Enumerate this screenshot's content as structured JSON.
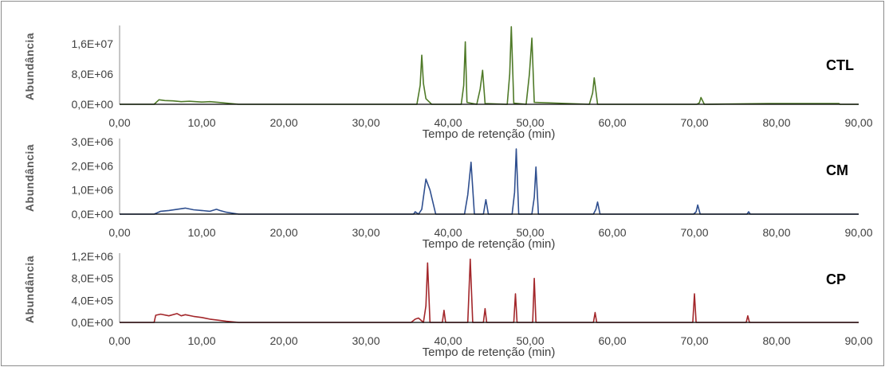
{
  "chart_data": [
    {
      "type": "line",
      "label": "CTL",
      "ylabel": "Abundância",
      "xlabel": "Tempo de retenção (min)",
      "xlim": [
        0,
        90
      ],
      "ylim": [
        0,
        20000000
      ],
      "x_ticks": [
        "0,00",
        "10,00",
        "20,00",
        "30,00",
        "40,00",
        "50,00",
        "60,00",
        "70,00",
        "80,00",
        "90,00"
      ],
      "y_ticks": [
        {
          "value": 0,
          "label": "0,0E+00"
        },
        {
          "value": 8000000,
          "label": "8,0E+06"
        },
        {
          "value": 16000000,
          "label": "1,6E+07"
        }
      ],
      "color": "#4f7a28",
      "series": [
        {
          "x": [
            0,
            4.2,
            4.8,
            5.5,
            6.5,
            7.5,
            8.5,
            10,
            11,
            12,
            13,
            14.5,
            20,
            30,
            36.2,
            36.6,
            36.8,
            37,
            37.3,
            38,
            41.6,
            41.9,
            42.1,
            42.3,
            43.5,
            43.9,
            44.2,
            44.5,
            47.2,
            47.5,
            47.7,
            48,
            49.5,
            49.9,
            50.2,
            50.5,
            57.2,
            57.6,
            57.8,
            58.2,
            70.3,
            70.6,
            70.8,
            71.2,
            79,
            84,
            87.6,
            87.7,
            90
          ],
          "y": [
            0,
            0,
            1200000,
            1000000,
            900000,
            700000,
            800000,
            600000,
            700000,
            500000,
            300000,
            0,
            0,
            0,
            0,
            5000000,
            13000000,
            5500000,
            1500000,
            0,
            0,
            5000000,
            16500000,
            500000,
            0,
            4000000,
            9000000,
            200000,
            0,
            8000000,
            20500000,
            300000,
            0,
            8000000,
            17500000,
            500000,
            0,
            3000000,
            7000000,
            0,
            0,
            400000,
            1800000,
            0,
            200000,
            200000,
            200000,
            0,
            0
          ]
        }
      ]
    },
    {
      "type": "line",
      "label": "CM",
      "ylabel": "Abundância",
      "xlabel": "Tempo de retenção (min)",
      "xlim": [
        0,
        90
      ],
      "ylim": [
        0,
        3000000
      ],
      "x_ticks": [
        "0,00",
        "10,00",
        "20,00",
        "30,00",
        "40,00",
        "50,00",
        "60,00",
        "70,00",
        "80,00",
        "90,00"
      ],
      "y_ticks": [
        {
          "value": 0,
          "label": "0,0E+00"
        },
        {
          "value": 1000000,
          "label": "1,0E+06"
        },
        {
          "value": 2000000,
          "label": "2,0E+06"
        },
        {
          "value": 3000000,
          "label": "3,0E+06"
        }
      ],
      "color": "#2f4f8f",
      "series": [
        {
          "x": [
            0,
            4.2,
            5,
            6,
            7,
            8,
            9,
            10,
            11,
            11.8,
            12.2,
            13,
            14.5,
            20,
            30,
            35.8,
            36,
            36.4,
            36.8,
            37.3,
            37.8,
            38.5,
            42,
            42.4,
            42.8,
            43.2,
            44.3,
            44.6,
            44.9,
            47.8,
            48.1,
            48.3,
            48.6,
            50.2,
            50.5,
            50.7,
            51,
            57.7,
            58,
            58.2,
            58.5,
            69.9,
            70.2,
            70.4,
            70.7,
            76.4,
            76.6,
            76.8,
            87.6,
            87.7,
            90
          ],
          "y": [
            0,
            0,
            120000,
            150000,
            200000,
            250000,
            180000,
            150000,
            120000,
            200000,
            150000,
            80000,
            0,
            0,
            0,
            0,
            100000,
            0,
            200000,
            1450000,
            1000000,
            0,
            0,
            800000,
            2150000,
            0,
            0,
            600000,
            0,
            0,
            900000,
            2700000,
            0,
            0,
            700000,
            1950000,
            0,
            0,
            200000,
            500000,
            0,
            0,
            100000,
            380000,
            0,
            0,
            100000,
            0,
            0,
            0,
            0
          ]
        }
      ]
    },
    {
      "type": "line",
      "label": "CP",
      "ylabel": "Abundância",
      "xlabel": "Tempo de retenção (min)",
      "xlim": [
        0,
        90
      ],
      "ylim": [
        0,
        1200000
      ],
      "x_ticks": [
        "0,00",
        "10,00",
        "20,00",
        "30,00",
        "40,00",
        "50,00",
        "60,00",
        "70,00",
        "80,00",
        "90,00"
      ],
      "y_ticks": [
        {
          "value": 0,
          "label": "0,0E+00"
        },
        {
          "value": 400000,
          "label": "4,0E+05"
        },
        {
          "value": 800000,
          "label": "8,0E+05"
        },
        {
          "value": 1200000,
          "label": "1,2E+06"
        }
      ],
      "color": "#a3272b",
      "series": [
        {
          "x": [
            0,
            4.2,
            4.4,
            5,
            6,
            7,
            7.5,
            8,
            9,
            10,
            11,
            12,
            13,
            14.5,
            20,
            30,
            35.5,
            36,
            36.4,
            37,
            37.3,
            37.5,
            37.8,
            39.3,
            39.5,
            39.7,
            42.4,
            42.7,
            43,
            44.3,
            44.5,
            44.7,
            48,
            48.2,
            48.4,
            50.3,
            50.5,
            50.7,
            57.7,
            57.9,
            58.1,
            69.8,
            70,
            70.2,
            76.3,
            76.5,
            76.7,
            87,
            90
          ],
          "y": [
            0,
            0,
            130000,
            150000,
            120000,
            160000,
            120000,
            140000,
            110000,
            90000,
            60000,
            40000,
            20000,
            0,
            0,
            0,
            0,
            60000,
            80000,
            0,
            300000,
            1080000,
            0,
            0,
            220000,
            0,
            0,
            1150000,
            0,
            0,
            250000,
            0,
            0,
            520000,
            0,
            0,
            800000,
            0,
            0,
            180000,
            0,
            0,
            520000,
            0,
            0,
            120000,
            0,
            0,
            0
          ]
        }
      ]
    }
  ]
}
